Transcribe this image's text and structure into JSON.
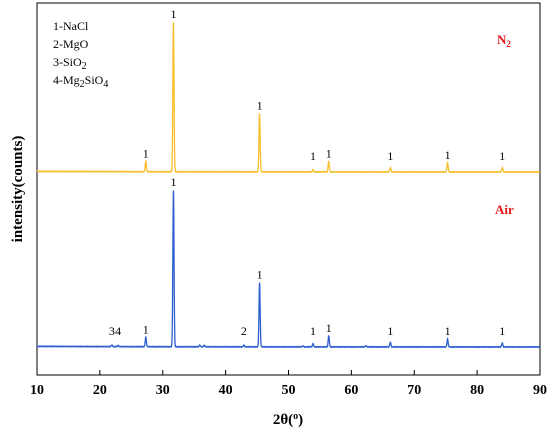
{
  "chart_data": {
    "type": "line",
    "xlabel": "2θ(°)",
    "ylabel": "intensity(counts)",
    "xlim": [
      10,
      90
    ],
    "x_ticks": [
      "10",
      "20",
      "30",
      "40",
      "50",
      "60",
      "70",
      "80",
      "90"
    ],
    "legend": [
      "1-NaCl",
      "2-MgO",
      "3-SiO2",
      "4-Mg2SiO4"
    ],
    "legend_placement": "top-left",
    "grid": false,
    "colors": {
      "n2": "#F5BE2A",
      "air": "#2D5FD0",
      "label_red": "#E8141B"
    },
    "series": [
      {
        "name": "N2",
        "color": "#F5BE2A",
        "baseline": 0.05,
        "peaks": [
          {
            "x": 27.3,
            "h": 0.07,
            "label": "1"
          },
          {
            "x": 31.7,
            "h": 1.0,
            "label": "1"
          },
          {
            "x": 45.4,
            "h": 0.39,
            "label": "1"
          },
          {
            "x": 53.9,
            "h": 0.015,
            "label": "1"
          },
          {
            "x": 56.4,
            "h": 0.07,
            "label": "1"
          },
          {
            "x": 66.2,
            "h": 0.03,
            "label": "1"
          },
          {
            "x": 75.3,
            "h": 0.06,
            "label": "1"
          },
          {
            "x": 84.0,
            "h": 0.03,
            "label": "1"
          }
        ]
      },
      {
        "name": "Air",
        "color": "#2D5FD0",
        "baseline": 0.0,
        "peaks": [
          {
            "x": 21.9,
            "h": 0.01,
            "label": "3"
          },
          {
            "x": 22.9,
            "h": 0.008,
            "label": "4"
          },
          {
            "x": 27.3,
            "h": 0.06,
            "label": "1"
          },
          {
            "x": 31.7,
            "h": 1.0,
            "label": "1"
          },
          {
            "x": 35.9,
            "h": 0.01,
            "label": ""
          },
          {
            "x": 36.6,
            "h": 0.01,
            "label": ""
          },
          {
            "x": 42.9,
            "h": 0.01,
            "label": "2"
          },
          {
            "x": 45.4,
            "h": 0.41,
            "label": "1"
          },
          {
            "x": 52.3,
            "h": 0.006,
            "label": ""
          },
          {
            "x": 53.9,
            "h": 0.02,
            "label": "1"
          },
          {
            "x": 56.4,
            "h": 0.07,
            "label": "1"
          },
          {
            "x": 62.3,
            "h": 0.008,
            "label": ""
          },
          {
            "x": 66.2,
            "h": 0.03,
            "label": "1"
          },
          {
            "x": 75.3,
            "h": 0.05,
            "label": "1"
          },
          {
            "x": 84.0,
            "h": 0.025,
            "label": "1"
          }
        ]
      }
    ]
  }
}
